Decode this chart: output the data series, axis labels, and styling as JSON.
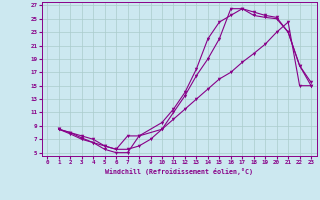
{
  "xlabel": "Windchill (Refroidissement éolien,°C)",
  "bg_color": "#cce8f0",
  "grid_color": "#aacccc",
  "line_color": "#880088",
  "xlim": [
    -0.5,
    23.5
  ],
  "ylim": [
    4.5,
    27.5
  ],
  "xticks": [
    0,
    1,
    2,
    3,
    4,
    5,
    6,
    7,
    8,
    9,
    10,
    11,
    12,
    13,
    14,
    15,
    16,
    17,
    18,
    19,
    20,
    21,
    22,
    23
  ],
  "yticks": [
    5,
    7,
    9,
    11,
    13,
    15,
    17,
    19,
    21,
    23,
    25,
    27
  ],
  "curve1_x": [
    1,
    2,
    3,
    4,
    5,
    6,
    7,
    8,
    10,
    11,
    12,
    13,
    14,
    15,
    16,
    17,
    18,
    19,
    20,
    21,
    22,
    23
  ],
  "curve1_y": [
    8.5,
    8.0,
    7.2,
    6.5,
    5.5,
    5.0,
    5.0,
    7.5,
    8.5,
    11.0,
    13.5,
    16.5,
    19.0,
    22.0,
    26.5,
    26.5,
    26.0,
    25.5,
    25.2,
    23.0,
    18.0,
    15.5
  ],
  "curve2_x": [
    1,
    2,
    3,
    4,
    5,
    6,
    7,
    8,
    10,
    11,
    12,
    13,
    14,
    15,
    16,
    17,
    18,
    19,
    20,
    21,
    22,
    23
  ],
  "curve2_y": [
    8.5,
    8.0,
    7.5,
    7.0,
    6.0,
    5.5,
    7.5,
    7.5,
    9.5,
    11.5,
    14.0,
    17.5,
    22.0,
    24.5,
    25.5,
    26.5,
    25.5,
    25.2,
    25.0,
    23.0,
    18.0,
    15.0
  ],
  "curve3_x": [
    1,
    2,
    3,
    4,
    5,
    6,
    7,
    8,
    9,
    10,
    11,
    12,
    13,
    14,
    15,
    16,
    17,
    18,
    19,
    20,
    21,
    22,
    23
  ],
  "curve3_y": [
    8.5,
    7.8,
    7.0,
    6.5,
    6.0,
    5.5,
    5.5,
    6.0,
    7.0,
    8.5,
    10.0,
    11.5,
    13.0,
    14.5,
    16.0,
    17.0,
    18.5,
    19.8,
    21.2,
    23.0,
    24.5,
    15.0,
    15.0
  ]
}
